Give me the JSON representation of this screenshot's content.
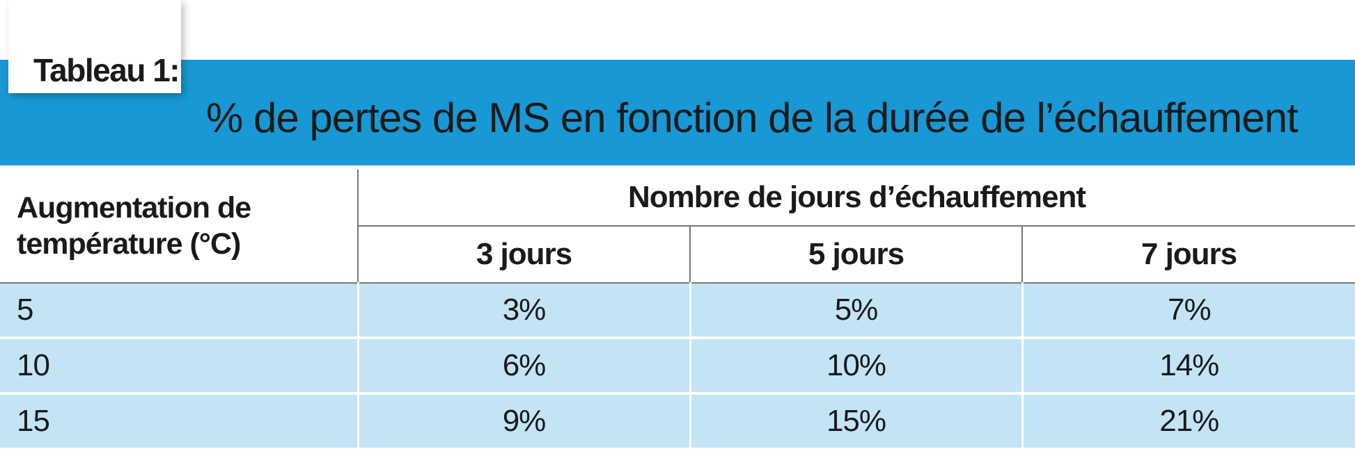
{
  "tag_label": "Tableau 1:",
  "title": "% de pertes de MS en fonction de la durée de l’échauffement",
  "colors": {
    "title_band": "#1898d4",
    "row_fill": "#c3e4f5"
  },
  "table": {
    "row_header": "Augmentation de température (°C)",
    "group_header": "Nombre de jours d’échauffement",
    "columns": [
      "3 jours",
      "5 jours",
      "7 jours"
    ],
    "rows": [
      {
        "label": "5",
        "values": [
          "3%",
          "5%",
          "7%"
        ]
      },
      {
        "label": "10",
        "values": [
          "6%",
          "10%",
          "14%"
        ]
      },
      {
        "label": "15",
        "values": [
          "9%",
          "15%",
          "21%"
        ]
      }
    ]
  }
}
